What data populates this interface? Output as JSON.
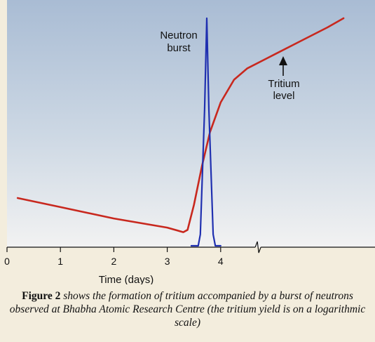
{
  "chart_data": {
    "type": "line",
    "xlabel": "Time (days)",
    "ylabel": "",
    "xlim": [
      0,
      6.35
    ],
    "x_ticks": [
      "0",
      "1",
      "2",
      "3",
      "4"
    ],
    "y_scale": "log",
    "grid": false,
    "axis_break_at_x": 4.7,
    "series": [
      {
        "color": "#c8281e",
        "points": [
          [
            0.2,
            0.21
          ],
          [
            1.0,
            0.17
          ],
          [
            2.0,
            0.12
          ],
          [
            3.0,
            0.08
          ],
          [
            3.3,
            0.06
          ],
          [
            3.38,
            0.07
          ],
          [
            3.5,
            0.18
          ],
          [
            3.65,
            0.35
          ],
          [
            3.8,
            0.5
          ],
          [
            4.0,
            0.63
          ],
          [
            4.25,
            0.73
          ],
          [
            4.5,
            0.78
          ],
          [
            5.0,
            0.84
          ],
          [
            5.5,
            0.9
          ],
          [
            6.0,
            0.96
          ],
          [
            6.3,
            1.0
          ]
        ]
      },
      {
        "color": "#2030b0",
        "points": [
          [
            3.45,
            0.0
          ],
          [
            3.58,
            0.0
          ],
          [
            3.62,
            0.05
          ],
          [
            3.7,
            0.6
          ],
          [
            3.74,
            1.0
          ],
          [
            3.78,
            0.6
          ],
          [
            3.86,
            0.05
          ],
          [
            3.9,
            0.0
          ],
          [
            4.0,
            0.0
          ]
        ]
      }
    ],
    "annotations": [
      {
        "text": [
          "Neutron",
          "burst"
        ]
      },
      {
        "text": [
          "Tritium",
          "level"
        ]
      }
    ]
  },
  "caption": {
    "figure_label": "Figure 2",
    "text": " shows the formation of tritium accompanied by a burst of neutrons observed at Bhabha Atomic Research Centre (the tritium yield is on a logarithmic scale)"
  },
  "colors": {
    "plot_top": "#a9bcd4",
    "plot_bottom": "#f2f2f2",
    "axis": "#111111"
  }
}
